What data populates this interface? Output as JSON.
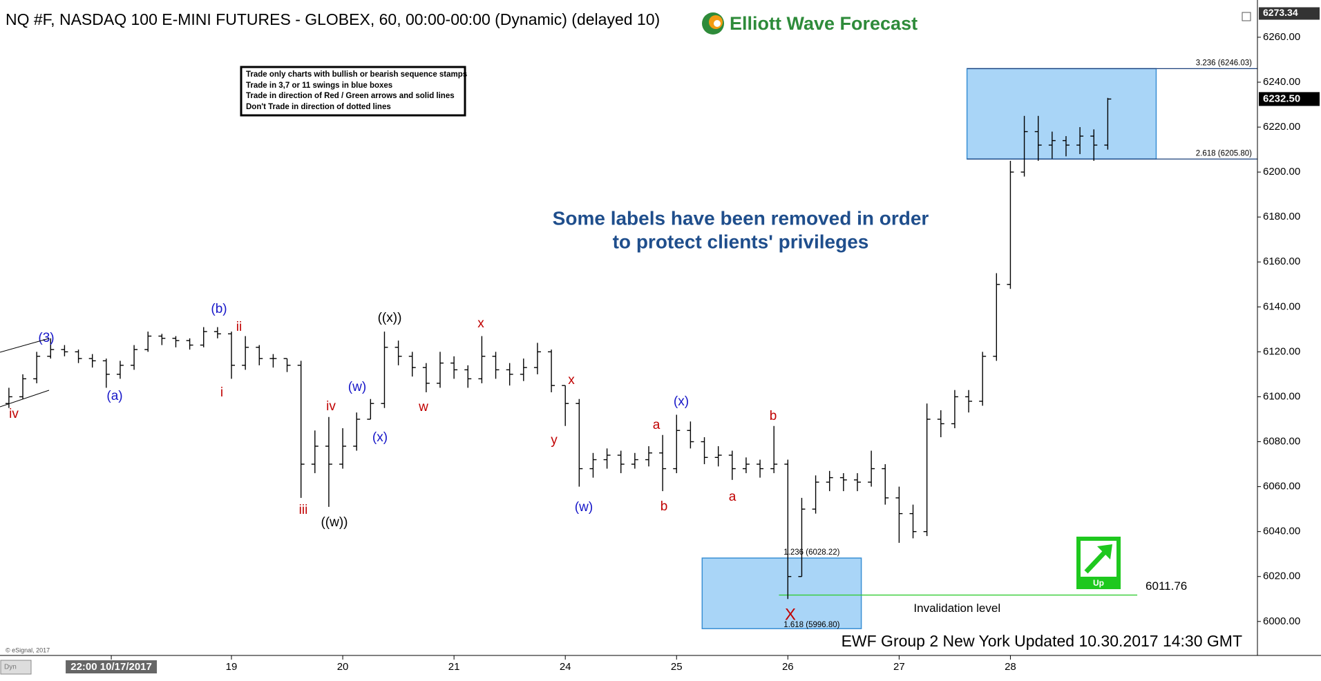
{
  "chart_data": {
    "type": "ohlc",
    "title": "NQ #F, NASDAQ 100 E-MINI FUTURES - GLOBEX, 60, 00:00-00:00 (Dynamic) (delayed 10)",
    "brand": "Elliott Wave Forecast",
    "rules": [
      "Trade only charts with bullish or bearish sequence stamps",
      "Trade in 3,7 or 11 swings in blue boxes",
      "Trade in direction of Red / Green arrows and solid lines",
      "Don't Trade in direction of dotted lines"
    ],
    "note": [
      "Some labels have been removed in order",
      "to protect clients' privileges"
    ],
    "footer": "EWF Group 2 New York Updated 10.30.2017 14:30 GMT",
    "copyright": "© eSignal, 2017",
    "mode": "Dyn",
    "arrow_label": "Up",
    "color": "#000000",
    "x": [
      -1,
      -0.875,
      -0.75,
      -0.625,
      -0.5,
      -0.375,
      -0.25,
      -0.125,
      0,
      0.125,
      0.25,
      0.375,
      0.5,
      0.625,
      0.75,
      0.875,
      1,
      1.125,
      1.25,
      1.375,
      1.5,
      1.625,
      1.75,
      1.875,
      2,
      2.125,
      2.25,
      2.375,
      2.5,
      2.625,
      2.75,
      2.875,
      3,
      3.125,
      3.25,
      3.375,
      3.5,
      3.625,
      3.75,
      3.875,
      4,
      4.125,
      4.25,
      4.375,
      4.5,
      4.625,
      4.75,
      4.875,
      5,
      5.125,
      5.25,
      5.375,
      5.5,
      5.625,
      5.75,
      5.875,
      6,
      6.125,
      6.25,
      6.375,
      6.5,
      6.625,
      6.75,
      6.875,
      7,
      7.125,
      7.25,
      7.375,
      7.5,
      7.625,
      7.75,
      7.875,
      8,
      8.125,
      8.25,
      8.375,
      8.5,
      8.625,
      8.75,
      8.875
    ],
    "open": [
      6097,
      6100,
      6108,
      6118,
      6121,
      6120,
      6117,
      6116,
      6110,
      6114,
      6121,
      6127,
      6126,
      6125,
      6123,
      6129,
      6128,
      6114,
      6122,
      6117,
      6117,
      6114,
      6070,
      6078,
      6070,
      6078,
      6090,
      6097,
      6122,
      6118,
      6113,
      6106,
      6115,
      6112,
      6108,
      6118,
      6112,
      6110,
      6113,
      6120,
      6105,
      6097,
      6068,
      6072,
      6074,
      6070,
      6072,
      6075,
      6068,
      6085,
      6080,
      6073,
      6074,
      6068,
      6070,
      6068,
      6070,
      6020,
      6050,
      6062,
      6064,
      6063,
      6062,
      6068,
      6055,
      6048,
      6040,
      6090,
      6088,
      6100,
      6098,
      6118,
      6150,
      6200,
      6218,
      6212,
      6214,
      6212,
      6216,
      6212
    ],
    "high": [
      6104,
      6110,
      6120,
      6126,
      6123,
      6121,
      6119,
      6117,
      6116,
      6123,
      6129,
      6128,
      6127,
      6126,
      6131,
      6131,
      6129,
      6127,
      6123,
      6119,
      6117,
      6116,
      6085,
      6091,
      6086,
      6093,
      6099,
      6129,
      6125,
      6120,
      6115,
      6120,
      6118,
      6114,
      6127,
      6120,
      6115,
      6117,
      6124,
      6121,
      6105,
      6099,
      6075,
      6077,
      6076,
      6075,
      6078,
      6083,
      6092,
      6089,
      6082,
      6078,
      6076,
      6073,
      6072,
      6087,
      6072,
      6055,
      6065,
      6067,
      6066,
      6066,
      6076,
      6070,
      6060,
      6052,
      6097,
      6094,
      6103,
      6103,
      6120,
      6155,
      6205,
      6225,
      6225,
      6218,
      6216,
      6220,
      6219,
      6233
    ],
    "low": [
      6095,
      6099,
      6106,
      6117,
      6118,
      6115,
      6113,
      6104,
      6108,
      6112,
      6120,
      6123,
      6122,
      6121,
      6122,
      6126,
      6108,
      6112,
      6114,
      6113,
      6111,
      6055,
      6066,
      6051,
      6068,
      6076,
      6090,
      6095,
      6114,
      6109,
      6102,
      6104,
      6108,
      6104,
      6106,
      6108,
      6105,
      6107,
      6110,
      6102,
      6087,
      6060,
      6064,
      6068,
      6066,
      6068,
      6069,
      6058,
      6066,
      6077,
      6070,
      6069,
      6063,
      6066,
      6064,
      6066,
      6010,
      6020,
      6048,
      6058,
      6058,
      6058,
      6060,
      6052,
      6035,
      6037,
      6038,
      6082,
      6086,
      6093,
      6096,
      6116,
      6148,
      6198,
      6205,
      6206,
      6207,
      6208,
      6205,
      6210
    ],
    "close": [
      6100,
      6108,
      6118,
      6121,
      6120,
      6117,
      6116,
      6110,
      6114,
      6121,
      6127,
      6126,
      6125,
      6123,
      6129,
      6128,
      6114,
      6122,
      6117,
      6117,
      6114,
      6070,
      6078,
      6070,
      6078,
      6090,
      6097,
      6122,
      6118,
      6113,
      6106,
      6115,
      6112,
      6108,
      6118,
      6112,
      6110,
      6113,
      6120,
      6105,
      6097,
      6068,
      6072,
      6074,
      6070,
      6072,
      6075,
      6068,
      6085,
      6080,
      6073,
      6074,
      6068,
      6070,
      6068,
      6070,
      6020,
      6050,
      6062,
      6064,
      6063,
      6062,
      6068,
      6055,
      6048,
      6040,
      6090,
      6088,
      6100,
      6098,
      6118,
      6150,
      6200,
      6218,
      6212,
      6214,
      6212,
      6216,
      6212,
      6232.5
    ],
    "xlim": [
      -1.08,
      10.22
    ],
    "xticks": [
      {
        "value": -0.08,
        "label": "22:00 10/17/2017"
      },
      {
        "value": 1,
        "label": "19"
      },
      {
        "value": 2,
        "label": "20"
      },
      {
        "value": 3,
        "label": "21"
      },
      {
        "value": 4,
        "label": "24"
      },
      {
        "value": 5,
        "label": "25"
      },
      {
        "value": 6,
        "label": "26"
      },
      {
        "value": 7,
        "label": "27"
      },
      {
        "value": 8,
        "label": "28"
      }
    ],
    "ylim": [
      5985,
      6273.5
    ],
    "yticks": [
      {
        "value": 6000,
        "label": "6000.00"
      },
      {
        "value": 6020,
        "label": "6020.00"
      },
      {
        "value": 6040,
        "label": "6040.00"
      },
      {
        "value": 6060,
        "label": "6060.00"
      },
      {
        "value": 6080,
        "label": "6080.00"
      },
      {
        "value": 6100,
        "label": "6100.00"
      },
      {
        "value": 6120,
        "label": "6120.00"
      },
      {
        "value": 6140,
        "label": "6140.00"
      },
      {
        "value": 6160,
        "label": "6160.00"
      },
      {
        "value": 6180,
        "label": "6180.00"
      },
      {
        "value": 6200,
        "label": "6200.00"
      },
      {
        "value": 6220,
        "label": "6220.00"
      },
      {
        "value": 6240,
        "label": "6240.00"
      },
      {
        "value": 6260,
        "label": "6260.00"
      }
    ],
    "top_price": {
      "value": 6273.34,
      "label": "6273.34"
    },
    "last_price": {
      "value": 6232.5,
      "label": "6232.50"
    },
    "zones": [
      {
        "xlim": [
          7.61,
          9.31
        ],
        "levels": [
          {
            "value": 6246.03,
            "label": "3.236 (6246.03)"
          },
          {
            "value": 6205.8,
            "label": "2.618 (6205.80)"
          }
        ]
      },
      {
        "xlim": [
          5.23,
          6.66
        ],
        "levels": [
          {
            "value": 6028.22,
            "label": "1.236 (6028.22)"
          },
          {
            "value": 5996.8,
            "label": "1.618 (5996.80)"
          }
        ]
      }
    ],
    "zone_color": "#a9d5f7",
    "invalidation": {
      "value": 6011.76,
      "label": "6011.76",
      "text": "Invalidation level",
      "xlim": [
        5.92,
        9.14
      ],
      "color": "#33cc33"
    },
    "wave_labels": [
      {
        "text": "(3)",
        "color": "#1515c8"
      },
      {
        "text": "iv",
        "color": "#c00000"
      },
      {
        "text": "(a)",
        "color": "#1515c8"
      },
      {
        "text": "(b)",
        "color": "#1515c8"
      },
      {
        "text": "i",
        "color": "#c00000"
      },
      {
        "text": "ii",
        "color": "#c00000"
      },
      {
        "text": "iii",
        "color": "#c00000"
      },
      {
        "text": "iv",
        "color": "#c00000"
      },
      {
        "text": "((w))",
        "color": "#000000"
      },
      {
        "text": "(w)",
        "color": "#1515c8"
      },
      {
        "text": "(x)",
        "color": "#1515c8"
      },
      {
        "text": "((x))",
        "color": "#000000"
      },
      {
        "text": "w",
        "color": "#c00000"
      },
      {
        "text": "x",
        "color": "#c00000"
      },
      {
        "text": "y",
        "color": "#c00000"
      },
      {
        "text": "x",
        "color": "#c00000"
      },
      {
        "text": "(w)",
        "color": "#1515c8"
      },
      {
        "text": "a",
        "color": "#c00000"
      },
      {
        "text": "b",
        "color": "#c00000"
      },
      {
        "text": "(x)",
        "color": "#1515c8"
      },
      {
        "text": "a",
        "color": "#c00000"
      },
      {
        "text": "b",
        "color": "#c00000"
      },
      {
        "text": "X",
        "color": "#c00000"
      }
    ]
  }
}
